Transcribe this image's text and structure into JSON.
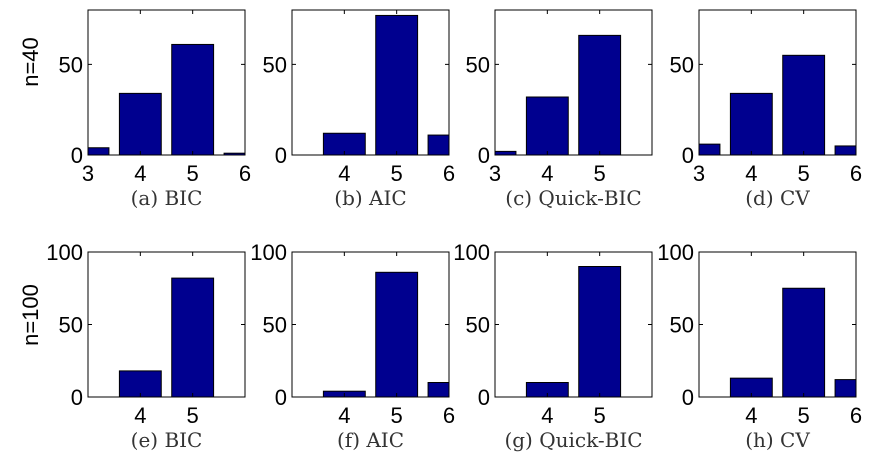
{
  "row_labels": [
    "n=40",
    "n=100"
  ],
  "colors": {
    "bar": "#00008f",
    "bar_edge": "#000000"
  },
  "chart_data": [
    {
      "type": "bar",
      "caption": "(a) BIC",
      "row": 0,
      "col": 0,
      "categories": [
        3,
        4,
        5,
        6
      ],
      "values": [
        4,
        34,
        61,
        1
      ],
      "xlim": [
        3,
        6
      ],
      "ylim": [
        0,
        80
      ],
      "xticks": [
        "3",
        "4",
        "5",
        "6"
      ],
      "yticks": [
        "0",
        "50"
      ]
    },
    {
      "type": "bar",
      "caption": "(b) AIC",
      "row": 0,
      "col": 1,
      "categories": [
        4,
        5,
        6
      ],
      "values": [
        12,
        77,
        11
      ],
      "xlim": [
        3,
        6
      ],
      "ylim": [
        0,
        80
      ],
      "xticks": [
        "4",
        "5",
        "6"
      ],
      "yticks": [
        "0",
        "50"
      ]
    },
    {
      "type": "bar",
      "caption": "(c) Quick-BIC",
      "row": 0,
      "col": 2,
      "categories": [
        3,
        4,
        5
      ],
      "values": [
        2,
        32,
        66
      ],
      "xlim": [
        3,
        6
      ],
      "ylim": [
        0,
        80
      ],
      "xticks": [
        "3",
        "4",
        "5"
      ],
      "yticks": [
        "0",
        "50"
      ]
    },
    {
      "type": "bar",
      "caption": "(d) CV",
      "row": 0,
      "col": 3,
      "categories": [
        3,
        4,
        5,
        6
      ],
      "values": [
        6,
        34,
        55,
        5
      ],
      "xlim": [
        3,
        6
      ],
      "ylim": [
        0,
        80
      ],
      "xticks": [
        "3",
        "4",
        "5",
        "6"
      ],
      "yticks": [
        "0",
        "50"
      ]
    },
    {
      "type": "bar",
      "caption": "(e) BIC",
      "row": 1,
      "col": 0,
      "categories": [
        4,
        5
      ],
      "values": [
        18,
        82
      ],
      "xlim": [
        3,
        6
      ],
      "ylim": [
        0,
        100
      ],
      "xticks": [
        "4",
        "5"
      ],
      "yticks": [
        "0",
        "50",
        "100"
      ]
    },
    {
      "type": "bar",
      "caption": "(f) AIC",
      "row": 1,
      "col": 1,
      "categories": [
        4,
        5,
        6
      ],
      "values": [
        4,
        86,
        10
      ],
      "xlim": [
        3,
        6
      ],
      "ylim": [
        0,
        100
      ],
      "xticks": [
        "4",
        "5",
        "6"
      ],
      "yticks": [
        "0",
        "50",
        "100"
      ]
    },
    {
      "type": "bar",
      "caption": "(g) Quick-BIC",
      "row": 1,
      "col": 2,
      "categories": [
        4,
        5
      ],
      "values": [
        10,
        90
      ],
      "xlim": [
        3,
        6
      ],
      "ylim": [
        0,
        100
      ],
      "xticks": [
        "4",
        "5"
      ],
      "yticks": [
        "0",
        "50",
        "100"
      ]
    },
    {
      "type": "bar",
      "caption": "(h) CV",
      "row": 1,
      "col": 3,
      "categories": [
        4,
        5,
        6
      ],
      "values": [
        13,
        75,
        12
      ],
      "xlim": [
        3,
        6
      ],
      "ylim": [
        0,
        100
      ],
      "xticks": [
        "4",
        "5",
        "6"
      ],
      "yticks": [
        "0",
        "50",
        "100"
      ]
    }
  ]
}
